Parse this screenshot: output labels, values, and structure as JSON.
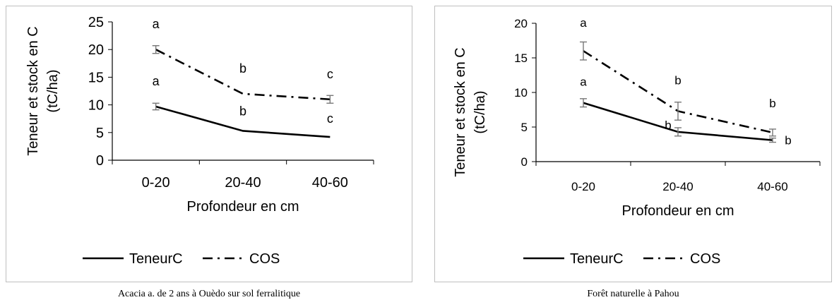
{
  "chart_data": [
    {
      "type": "line",
      "caption": "Acacia a. de 2 ans à Ouèdo sur sol ferralitique",
      "categories": [
        "0-20",
        "20-40",
        "40-60"
      ],
      "xlabel": "Profondeur en cm",
      "ylabel": [
        "Teneur et stock en C",
        "(tC/ha)"
      ],
      "ylim": [
        0,
        25
      ],
      "yticks": [
        "0",
        "5",
        "10",
        "15",
        "20",
        "25"
      ],
      "grid": false,
      "legend_position": "bottom",
      "series": [
        {
          "name": "TeneurC",
          "style": "solid",
          "color": "#000000",
          "values": [
            9.7,
            5.3,
            4.2
          ],
          "errors": [
            0.6,
            0,
            0
          ],
          "labels": [
            "a",
            "b",
            "c"
          ]
        },
        {
          "name": "COS",
          "style": "dashdot",
          "color": "#000000",
          "values": [
            20,
            12,
            11
          ],
          "errors": [
            0.7,
            0,
            0.7
          ],
          "labels": [
            "a",
            "b",
            "c"
          ]
        }
      ]
    },
    {
      "type": "line",
      "caption": "Forêt naturelle à Pahou",
      "categories": [
        "0-20",
        "20-40",
        "40-60"
      ],
      "xlabel": "Profondeur en cm",
      "ylabel": [
        "Teneur et stock en C",
        "(tC/ha)"
      ],
      "ylim": [
        0,
        20
      ],
      "yticks": [
        "0",
        "5",
        "10",
        "15",
        "20"
      ],
      "grid": false,
      "legend_position": "bottom",
      "series": [
        {
          "name": "TeneurC",
          "style": "solid",
          "color": "#000000",
          "values": [
            8.5,
            4.3,
            3.1
          ],
          "errors": [
            0.6,
            0.6,
            0.3
          ],
          "labels": [
            "a",
            "b",
            "b"
          ]
        },
        {
          "name": "COS",
          "style": "dashdot",
          "color": "#000000",
          "values": [
            16,
            7.3,
            4.2
          ],
          "errors": [
            1.3,
            1.3,
            0.5
          ],
          "labels": [
            "a",
            "b",
            "b"
          ]
        }
      ]
    }
  ]
}
